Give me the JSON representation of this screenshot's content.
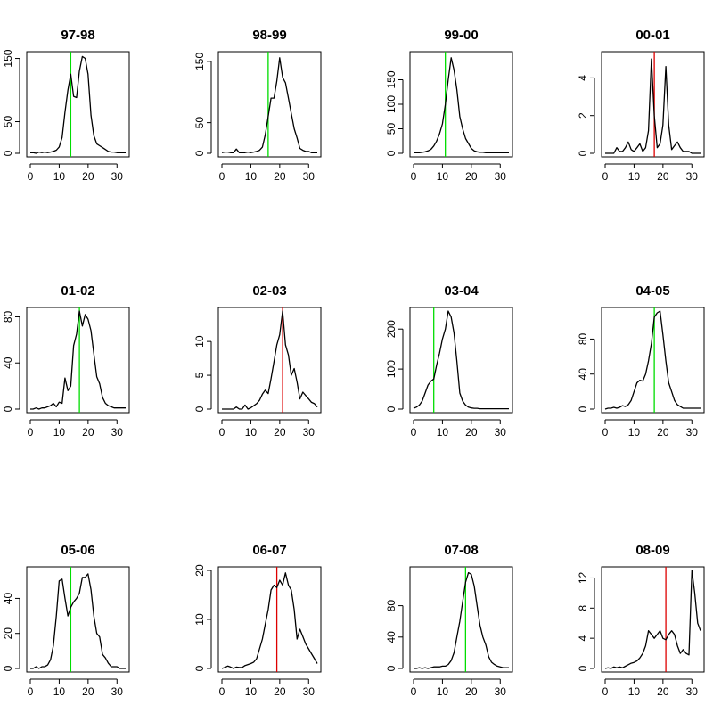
{
  "chart_data": [
    {
      "type": "line",
      "title": "97-98",
      "xlim": [
        0,
        33
      ],
      "ylim": [
        0,
        155
      ],
      "xticks": [
        0,
        10,
        20,
        30
      ],
      "yticks": [
        0,
        50,
        150
      ],
      "vline": {
        "x": 14,
        "color": "#00dd00"
      },
      "x": [
        0,
        1,
        2,
        3,
        4,
        5,
        6,
        7,
        8,
        9,
        10,
        11,
        12,
        13,
        14,
        15,
        16,
        17,
        18,
        19,
        20,
        21,
        22,
        23,
        24,
        25,
        26,
        27,
        28,
        29,
        30,
        31,
        32,
        33
      ],
      "y": [
        1,
        1,
        0,
        2,
        1,
        2,
        1,
        2,
        3,
        5,
        10,
        25,
        65,
        100,
        125,
        90,
        88,
        130,
        153,
        150,
        125,
        60,
        28,
        15,
        12,
        9,
        6,
        3,
        2,
        2,
        1,
        1,
        1,
        1
      ]
    },
    {
      "type": "line",
      "title": "98-99",
      "xlim": [
        0,
        33
      ],
      "ylim": [
        0,
        160
      ],
      "xticks": [
        0,
        10,
        20,
        30
      ],
      "yticks": [
        0,
        50,
        150
      ],
      "vline": {
        "x": 16,
        "color": "#00dd00"
      },
      "x": [
        0,
        1,
        2,
        3,
        4,
        5,
        6,
        7,
        8,
        9,
        10,
        11,
        12,
        13,
        14,
        15,
        16,
        17,
        18,
        19,
        20,
        21,
        22,
        23,
        24,
        25,
        26,
        27,
        28,
        29,
        30,
        31,
        32,
        33
      ],
      "y": [
        1,
        2,
        2,
        1,
        1,
        7,
        1,
        1,
        1,
        2,
        1,
        2,
        3,
        5,
        10,
        30,
        60,
        90,
        90,
        118,
        156,
        124,
        115,
        90,
        65,
        40,
        25,
        8,
        5,
        3,
        3,
        1,
        1,
        1
      ]
    },
    {
      "type": "line",
      "title": "99-00",
      "xlim": [
        0,
        33
      ],
      "ylim": [
        0,
        200
      ],
      "xticks": [
        0,
        10,
        20,
        30
      ],
      "yticks": [
        0,
        50,
        100,
        150
      ],
      "vline": {
        "x": 11,
        "color": "#00dd00"
      },
      "x": [
        0,
        1,
        2,
        3,
        4,
        5,
        6,
        7,
        8,
        9,
        10,
        11,
        12,
        13,
        14,
        15,
        16,
        17,
        18,
        19,
        20,
        21,
        22,
        23,
        24,
        25,
        26,
        27,
        28,
        29,
        30,
        31,
        32,
        33
      ],
      "y": [
        1,
        1,
        1,
        2,
        3,
        5,
        8,
        15,
        25,
        40,
        60,
        100,
        150,
        195,
        170,
        130,
        75,
        50,
        30,
        20,
        10,
        5,
        3,
        2,
        2,
        1,
        1,
        1,
        1,
        1,
        1,
        1,
        1,
        1
      ]
    },
    {
      "type": "line",
      "title": "00-01",
      "xlim": [
        0,
        33
      ],
      "ylim": [
        0,
        5.2
      ],
      "xticks": [
        0,
        10,
        20,
        30
      ],
      "yticks": [
        0,
        2,
        4
      ],
      "vline": {
        "x": 17,
        "color": "#dd0000"
      },
      "x": [
        0,
        1,
        2,
        3,
        4,
        5,
        6,
        7,
        8,
        9,
        10,
        11,
        12,
        13,
        14,
        15,
        16,
        17,
        18,
        19,
        20,
        21,
        22,
        23,
        24,
        25,
        26,
        27,
        28,
        29,
        30,
        31,
        32,
        33
      ],
      "y": [
        0,
        0,
        0,
        0,
        0.3,
        0.1,
        0.1,
        0.3,
        0.6,
        0.2,
        0.1,
        0.3,
        0.5,
        0.1,
        0.3,
        1.2,
        5.0,
        2.0,
        0.3,
        0.5,
        1.5,
        4.6,
        1.5,
        0.2,
        0.4,
        0.6,
        0.3,
        0.1,
        0.1,
        0.1,
        0,
        0,
        0,
        0
      ]
    },
    {
      "type": "line",
      "title": "01-02",
      "xlim": [
        0,
        33
      ],
      "ylim": [
        0,
        85
      ],
      "xticks": [
        0,
        10,
        20,
        30
      ],
      "yticks": [
        0,
        40,
        80
      ],
      "vline": {
        "x": 17,
        "color": "#00dd00"
      },
      "x": [
        0,
        1,
        2,
        3,
        4,
        5,
        6,
        7,
        8,
        9,
        10,
        11,
        12,
        13,
        14,
        15,
        16,
        17,
        18,
        19,
        20,
        21,
        22,
        23,
        24,
        25,
        26,
        27,
        28,
        29,
        30,
        31,
        32,
        33
      ],
      "y": [
        0,
        0,
        1,
        0,
        1,
        1,
        2,
        3,
        5,
        2,
        6,
        5,
        27,
        16,
        20,
        55,
        65,
        85,
        72,
        82,
        78,
        68,
        48,
        28,
        22,
        10,
        5,
        3,
        2,
        1,
        1,
        1,
        1,
        1
      ]
    },
    {
      "type": "line",
      "title": "02-03",
      "xlim": [
        0,
        33
      ],
      "ylim": [
        0,
        14.5
      ],
      "xticks": [
        0,
        10,
        20,
        30
      ],
      "yticks": [
        0,
        5,
        10
      ],
      "vline": {
        "x": 21,
        "color": "#dd0000"
      },
      "x": [
        0,
        1,
        2,
        3,
        4,
        5,
        6,
        7,
        8,
        9,
        10,
        11,
        12,
        13,
        14,
        15,
        16,
        17,
        18,
        19,
        20,
        21,
        22,
        23,
        24,
        25,
        26,
        27,
        28,
        29,
        30,
        31,
        32,
        33
      ],
      "y": [
        0,
        0,
        0,
        0,
        0,
        0.3,
        0,
        0,
        0.6,
        0,
        0.2,
        0.5,
        0.8,
        1.3,
        2.2,
        2.8,
        2.3,
        4.5,
        7.0,
        9.5,
        11.0,
        14.5,
        9.5,
        8.0,
        5.0,
        6.0,
        4.0,
        1.5,
        2.5,
        2.0,
        1.5,
        1.0,
        0.8,
        0.3
      ]
    },
    {
      "type": "line",
      "title": "03-04",
      "xlim": [
        0,
        33
      ],
      "ylim": [
        0,
        245
      ],
      "xticks": [
        0,
        10,
        20,
        30
      ],
      "yticks": [
        0,
        100,
        200
      ],
      "vline": {
        "x": 7,
        "color": "#00dd00"
      },
      "x": [
        0,
        1,
        2,
        3,
        4,
        5,
        6,
        7,
        8,
        9,
        10,
        11,
        12,
        13,
        14,
        15,
        16,
        17,
        18,
        19,
        20,
        21,
        22,
        23,
        24,
        25,
        26,
        27,
        28,
        29,
        30,
        31,
        32,
        33
      ],
      "y": [
        2,
        5,
        10,
        20,
        40,
        60,
        70,
        75,
        110,
        140,
        175,
        200,
        245,
        230,
        190,
        120,
        40,
        20,
        10,
        5,
        3,
        2,
        2,
        1,
        1,
        1,
        1,
        1,
        1,
        1,
        1,
        1,
        1,
        1
      ]
    },
    {
      "type": "line",
      "title": "04-05",
      "xlim": [
        0,
        33
      ],
      "ylim": [
        0,
        112
      ],
      "xticks": [
        0,
        10,
        20,
        30
      ],
      "yticks": [
        0,
        40,
        80
      ],
      "vline": {
        "x": 17,
        "color": "#00dd00"
      },
      "x": [
        0,
        1,
        2,
        3,
        4,
        5,
        6,
        7,
        8,
        9,
        10,
        11,
        12,
        13,
        14,
        15,
        16,
        17,
        18,
        19,
        20,
        21,
        22,
        23,
        24,
        25,
        26,
        27,
        28,
        29,
        30,
        31,
        32,
        33
      ],
      "y": [
        0,
        1,
        1,
        2,
        1,
        2,
        4,
        3,
        5,
        10,
        20,
        30,
        33,
        32,
        40,
        55,
        75,
        105,
        110,
        112,
        85,
        55,
        30,
        20,
        10,
        5,
        3,
        1,
        1,
        1,
        1,
        1,
        1,
        1
      ]
    },
    {
      "type": "line",
      "title": "05-06",
      "xlim": [
        0,
        33
      ],
      "ylim": [
        0,
        56
      ],
      "xticks": [
        0,
        10,
        20,
        30
      ],
      "yticks": [
        0,
        20,
        40
      ],
      "vline": {
        "x": 14,
        "color": "#00dd00"
      },
      "x": [
        0,
        1,
        2,
        3,
        4,
        5,
        6,
        7,
        8,
        9,
        10,
        11,
        12,
        13,
        14,
        15,
        16,
        17,
        18,
        19,
        20,
        21,
        22,
        23,
        24,
        25,
        26,
        27,
        28,
        29,
        30,
        31,
        32,
        33
      ],
      "y": [
        0,
        0,
        1,
        0,
        1,
        1,
        2,
        5,
        13,
        30,
        50,
        51,
        40,
        30,
        35,
        38,
        40,
        43,
        52,
        52,
        54,
        45,
        30,
        20,
        18,
        8,
        6,
        3,
        1,
        1,
        1,
        0,
        0,
        0
      ]
    },
    {
      "type": "line",
      "title": "06-07",
      "xlim": [
        0,
        33
      ],
      "ylim": [
        0,
        20
      ],
      "xticks": [
        0,
        10,
        20,
        30
      ],
      "yticks": [
        0,
        10,
        20
      ],
      "vline": {
        "x": 19,
        "color": "#dd0000"
      },
      "x": [
        0,
        1,
        2,
        3,
        4,
        5,
        6,
        7,
        8,
        9,
        10,
        11,
        12,
        13,
        14,
        15,
        16,
        17,
        18,
        19,
        20,
        21,
        22,
        23,
        24,
        25,
        26,
        27,
        28,
        29,
        30,
        31,
        32,
        33
      ],
      "y": [
        0,
        0.2,
        0.5,
        0.3,
        0,
        0.3,
        0.2,
        0.2,
        0.6,
        0.8,
        1,
        1.3,
        2,
        4,
        6,
        9,
        12,
        16,
        17,
        16.5,
        18,
        17,
        19.5,
        17,
        16,
        12,
        6,
        8,
        6.5,
        5,
        4,
        3,
        2,
        1
      ]
    },
    {
      "type": "line",
      "title": "07-08",
      "xlim": [
        0,
        33
      ],
      "ylim": [
        0,
        125
      ],
      "xticks": [
        0,
        10,
        20,
        30
      ],
      "yticks": [
        0,
        40,
        80
      ],
      "vline": {
        "x": 18,
        "color": "#00dd00"
      },
      "x": [
        0,
        1,
        2,
        3,
        4,
        5,
        6,
        7,
        8,
        9,
        10,
        11,
        12,
        13,
        14,
        15,
        16,
        17,
        18,
        19,
        20,
        21,
        22,
        23,
        24,
        25,
        26,
        27,
        28,
        29,
        30,
        31,
        32,
        33
      ],
      "y": [
        0,
        0,
        1,
        0,
        1,
        0,
        1,
        2,
        2,
        2,
        3,
        3,
        5,
        10,
        20,
        40,
        60,
        85,
        110,
        122,
        120,
        105,
        80,
        55,
        40,
        30,
        15,
        8,
        5,
        3,
        2,
        1,
        1,
        1
      ]
    },
    {
      "type": "line",
      "title": "08-09",
      "xlim": [
        0,
        33
      ],
      "ylim": [
        0,
        13
      ],
      "xticks": [
        0,
        10,
        20,
        30
      ],
      "yticks": [
        0,
        4,
        8,
        12
      ],
      "vline": {
        "x": 21,
        "color": "#dd0000"
      },
      "x": [
        0,
        1,
        2,
        3,
        4,
        5,
        6,
        7,
        8,
        9,
        10,
        11,
        12,
        13,
        14,
        15,
        16,
        17,
        18,
        19,
        20,
        21,
        22,
        23,
        24,
        25,
        26,
        27,
        28,
        29,
        30,
        31,
        32,
        33
      ],
      "y": [
        0,
        0.1,
        0,
        0.2,
        0.1,
        0.2,
        0.1,
        0.3,
        0.5,
        0.7,
        0.8,
        1,
        1.4,
        2,
        3,
        5,
        4.5,
        4,
        4.5,
        5,
        4,
        3.8,
        4.5,
        5,
        4.5,
        3,
        2,
        2.5,
        2,
        1.8,
        13,
        10,
        6,
        5
      ]
    }
  ]
}
